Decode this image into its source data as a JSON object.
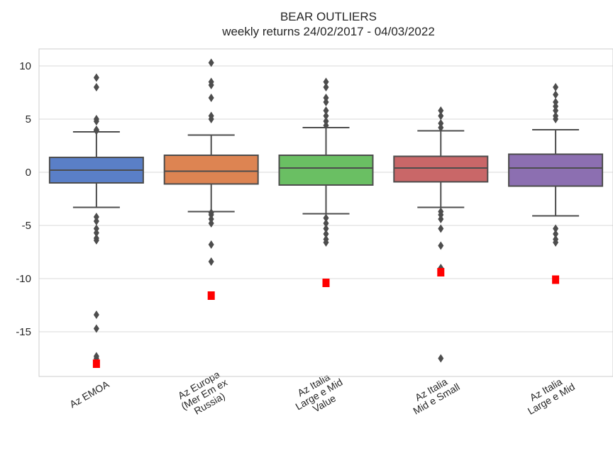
{
  "chart_data": {
    "type": "box",
    "title": "BEAR OUTLIERS",
    "subtitle": "weekly returns 24/02/2017 - 04/03/2022",
    "xlabel": "",
    "ylabel": "",
    "ylim": [
      -19.2,
      11.6
    ],
    "yticks": [
      "10",
      "5",
      "0",
      "-5",
      "-10",
      "-15"
    ],
    "ytick_values": [
      10,
      5,
      0,
      -5,
      -10,
      -15
    ],
    "grid": "horizontal",
    "colors": {
      "box_edge": "#4d4d4d",
      "outlier": "#4d4d4d",
      "highlight": "#ff0000",
      "grid": "#d9d9d9"
    },
    "series": [
      {
        "category_lines": [
          "Az EMOA"
        ],
        "color": "#5a7fc7",
        "q1": -1.0,
        "median": 0.2,
        "q3": 1.4,
        "whisker_low": -3.3,
        "whisker_high": 3.8,
        "outliers": [
          8.9,
          8.0,
          5.0,
          4.8,
          4.0,
          3.9,
          -4.2,
          -4.6,
          -5.3,
          -5.7,
          -6.2,
          -6.4,
          -13.4,
          -14.7,
          -17.3,
          -17.5
        ],
        "highlight": -18.0
      },
      {
        "category_lines": [
          "Az Europa",
          "(Mer Em ex",
          "Russia)"
        ],
        "color": "#dd8452",
        "q1": -1.1,
        "median": 0.1,
        "q3": 1.6,
        "whisker_low": -3.7,
        "whisker_high": 3.5,
        "outliers": [
          10.3,
          8.5,
          8.2,
          7.0,
          5.3,
          5.0,
          -3.8,
          -4.0,
          -4.4,
          -4.8,
          -6.8,
          -8.4
        ],
        "highlight": -11.6
      },
      {
        "category_lines": [
          "Az Italia",
          "Large e Mid",
          "Value"
        ],
        "color": "#6abf63",
        "q1": -1.2,
        "median": 0.4,
        "q3": 1.6,
        "whisker_low": -3.9,
        "whisker_high": 4.2,
        "outliers": [
          8.5,
          8.0,
          7.0,
          6.6,
          5.8,
          5.3,
          4.8,
          4.4,
          -4.3,
          -4.8,
          -5.3,
          -5.8,
          -6.3,
          -6.6
        ],
        "highlight": -10.4
      },
      {
        "category_lines": [
          "Az Italia",
          "Mid e Small"
        ],
        "color": "#c96768",
        "q1": -0.9,
        "median": 0.4,
        "q3": 1.5,
        "whisker_low": -3.3,
        "whisker_high": 3.9,
        "outliers": [
          5.8,
          5.3,
          4.6,
          4.2,
          -3.7,
          -4.0,
          -4.4,
          -5.3,
          -6.9,
          -9.0,
          -17.5
        ],
        "highlight": -9.4
      },
      {
        "category_lines": [
          "Az Italia",
          "Large e Mid"
        ],
        "color": "#8c6fb1",
        "q1": -1.3,
        "median": 0.4,
        "q3": 1.7,
        "whisker_low": -4.1,
        "whisker_high": 4.0,
        "outliers": [
          8.0,
          7.3,
          6.6,
          6.2,
          5.8,
          5.3,
          5.0,
          -5.3,
          -5.8,
          -6.3,
          -6.6
        ],
        "highlight": -10.1
      }
    ]
  }
}
